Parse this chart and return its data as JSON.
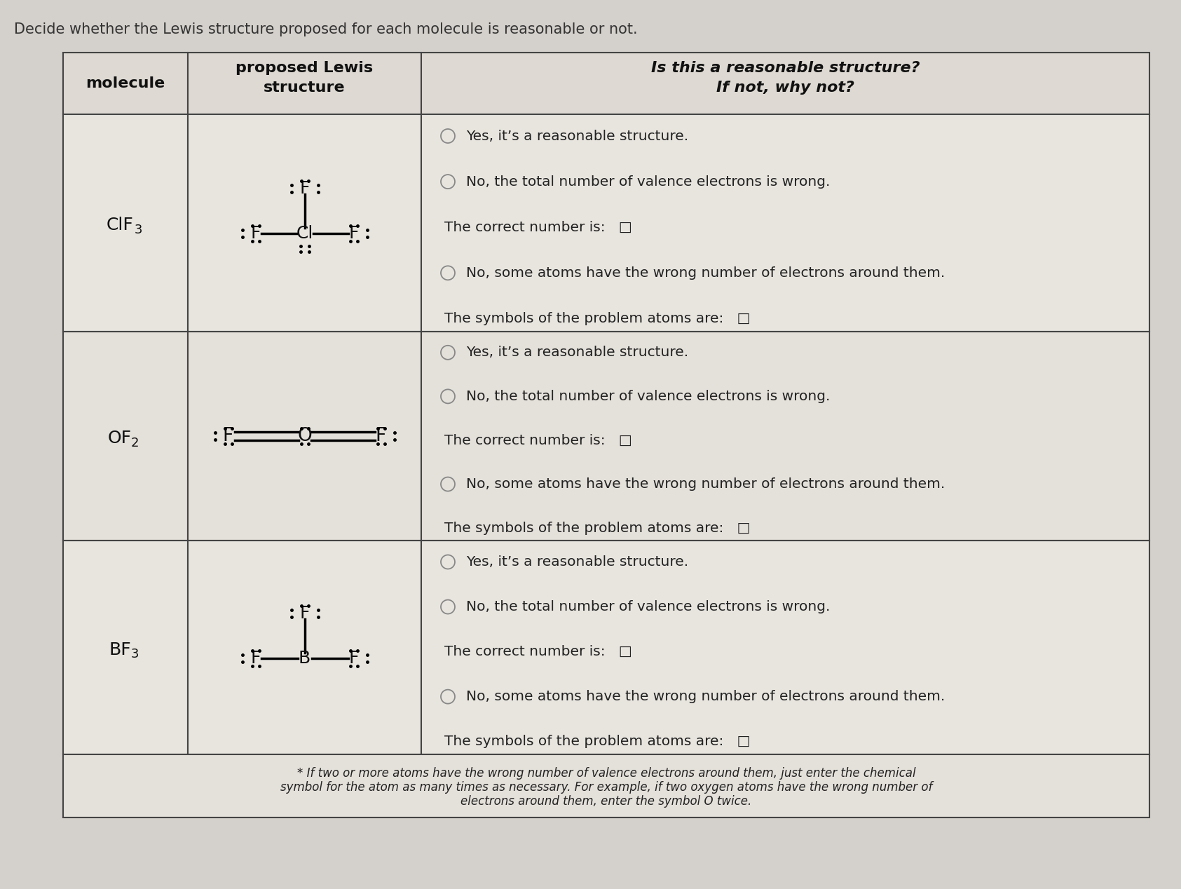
{
  "title": "Decide whether the Lewis structure proposed for each molecule is reasonable or not.",
  "bg_color": "#d4d0cb",
  "table_bg": "#e8e5df",
  "header_bg": "#d8d4ce",
  "border_color": "#444444",
  "rows": [
    {
      "molecule": "ClF",
      "molecule_sub": "3",
      "options": [
        {
          "radio": true,
          "text": "Yes, it’s a reasonable structure."
        },
        {
          "radio": true,
          "text": "No, the total number of valence electrons is wrong."
        },
        {
          "radio": false,
          "text": "The correct number is:   □"
        },
        {
          "radio": true,
          "text": "No, some atoms have the wrong number of electrons around them."
        },
        {
          "radio": false,
          "text": "The symbols of the problem atoms are:   □"
        }
      ]
    },
    {
      "molecule": "OF",
      "molecule_sub": "2",
      "options": [
        {
          "radio": true,
          "text": "Yes, it’s a reasonable structure."
        },
        {
          "radio": true,
          "text": "No, the total number of valence electrons is wrong."
        },
        {
          "radio": false,
          "text": "The correct number is:   □"
        },
        {
          "radio": true,
          "text": "No, some atoms have the wrong number of electrons around them."
        },
        {
          "radio": false,
          "text": "The symbols of the problem atoms are:   □"
        }
      ]
    },
    {
      "molecule": "BF",
      "molecule_sub": "3",
      "options": [
        {
          "radio": true,
          "text": "Yes, it’s a reasonable structure."
        },
        {
          "radio": true,
          "text": "No, the total number of valence electrons is wrong."
        },
        {
          "radio": false,
          "text": "The correct number is:   □"
        },
        {
          "radio": true,
          "text": "No, some atoms have the wrong number of electrons around them."
        },
        {
          "radio": false,
          "text": "The symbols of the problem atoms are:   □"
        }
      ]
    }
  ],
  "footnote1": "* If two or more atoms have the wrong number of valence electrons around them, just enter the chemical",
  "footnote2": "symbol for the atom as many times as necessary. For example, if two oxygen atoms have the wrong number of",
  "footnote3": "electrons around them, enter the symbol O twice."
}
